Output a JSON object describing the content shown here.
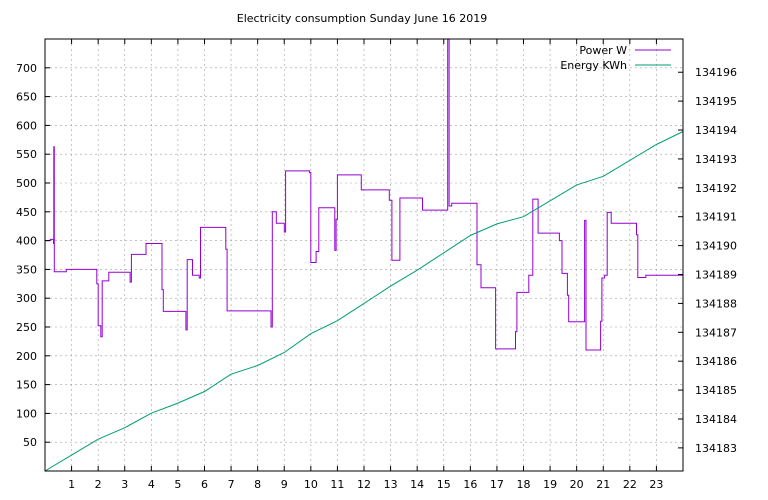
{
  "chart_data": {
    "type": "line",
    "title": "Electricity consumption Sunday June 16 2019",
    "xlabel": "",
    "ylabel": "",
    "y2label": "",
    "grid": true,
    "legend_position": "top-right",
    "x_range": [
      0,
      24
    ],
    "x_ticks": [
      1,
      2,
      3,
      4,
      5,
      6,
      7,
      8,
      9,
      10,
      11,
      12,
      13,
      14,
      15,
      16,
      17,
      18,
      19,
      20,
      21,
      22,
      23
    ],
    "y_range": [
      0,
      750
    ],
    "y_ticks": [
      50,
      100,
      150,
      200,
      250,
      300,
      350,
      400,
      450,
      500,
      550,
      600,
      650,
      700
    ],
    "y2_range": [
      134182.2,
      134197.15
    ],
    "y2_ticks": [
      134183,
      134184,
      134185,
      134186,
      134187,
      134188,
      134189,
      134190,
      134191,
      134192,
      134193,
      134194,
      134195,
      134196
    ],
    "series": [
      {
        "name": "Power W",
        "axis": "y1",
        "color": "#9400d3",
        "style": "steps",
        "points": [
          [
            0.0,
            400
          ],
          [
            0.2,
            402
          ],
          [
            0.32,
            395
          ],
          [
            0.33,
            563
          ],
          [
            0.35,
            346
          ],
          [
            0.8,
            350
          ],
          [
            1.95,
            325
          ],
          [
            2.0,
            252
          ],
          [
            2.1,
            233
          ],
          [
            2.15,
            330
          ],
          [
            2.4,
            345
          ],
          [
            3.2,
            328
          ],
          [
            3.25,
            376
          ],
          [
            3.8,
            395
          ],
          [
            4.4,
            315
          ],
          [
            4.45,
            277
          ],
          [
            5.3,
            245
          ],
          [
            5.35,
            367
          ],
          [
            5.55,
            340
          ],
          [
            5.8,
            335
          ],
          [
            5.85,
            423
          ],
          [
            6.8,
            385
          ],
          [
            6.85,
            278
          ],
          [
            8.5,
            250
          ],
          [
            8.55,
            450
          ],
          [
            8.7,
            430
          ],
          [
            9.0,
            415
          ],
          [
            9.05,
            521
          ],
          [
            9.95,
            518
          ],
          [
            10.0,
            362
          ],
          [
            10.2,
            381
          ],
          [
            10.3,
            457
          ],
          [
            10.9,
            383
          ],
          [
            10.95,
            437
          ],
          [
            11.0,
            514
          ],
          [
            11.9,
            488
          ],
          [
            12.95,
            470
          ],
          [
            13.05,
            366
          ],
          [
            13.35,
            474
          ],
          [
            14.2,
            453
          ],
          [
            15.15,
            750
          ],
          [
            15.2,
            460
          ],
          [
            15.3,
            465
          ],
          [
            16.25,
            358
          ],
          [
            16.4,
            318
          ],
          [
            16.95,
            212
          ],
          [
            17.7,
            242
          ],
          [
            17.75,
            310
          ],
          [
            18.0,
            310
          ],
          [
            18.2,
            340
          ],
          [
            18.35,
            472
          ],
          [
            18.55,
            413
          ],
          [
            19.35,
            400
          ],
          [
            19.45,
            343
          ],
          [
            19.65,
            305
          ],
          [
            19.7,
            259
          ],
          [
            20.3,
            435
          ],
          [
            20.35,
            210
          ],
          [
            20.9,
            260
          ],
          [
            20.95,
            335
          ],
          [
            21.05,
            340
          ],
          [
            21.15,
            449
          ],
          [
            21.3,
            430
          ],
          [
            22.25,
            410
          ],
          [
            22.3,
            336
          ],
          [
            22.6,
            340
          ],
          [
            24.0,
            340
          ]
        ]
      },
      {
        "name": "Energy KWh",
        "axis": "y2",
        "color": "#009e73",
        "style": "lines",
        "points": [
          [
            0,
            134182.2
          ],
          [
            1,
            134182.75
          ],
          [
            2,
            134183.3
          ],
          [
            3,
            134183.7
          ],
          [
            4,
            134184.2
          ],
          [
            5,
            134184.55
          ],
          [
            6,
            134184.95
          ],
          [
            7,
            134185.55
          ],
          [
            8,
            134185.85
          ],
          [
            9,
            134186.3
          ],
          [
            10,
            134186.95
          ],
          [
            11,
            134187.4
          ],
          [
            12,
            134188.0
          ],
          [
            13,
            134188.6
          ],
          [
            14,
            134189.15
          ],
          [
            15,
            134189.75
          ],
          [
            16,
            134190.35
          ],
          [
            17,
            134190.75
          ],
          [
            18,
            134191.0
          ],
          [
            19,
            134191.55
          ],
          [
            20,
            134192.1
          ],
          [
            21,
            134192.4
          ],
          [
            22,
            134192.95
          ],
          [
            23,
            134193.5
          ],
          [
            24,
            134193.95
          ]
        ]
      }
    ]
  }
}
